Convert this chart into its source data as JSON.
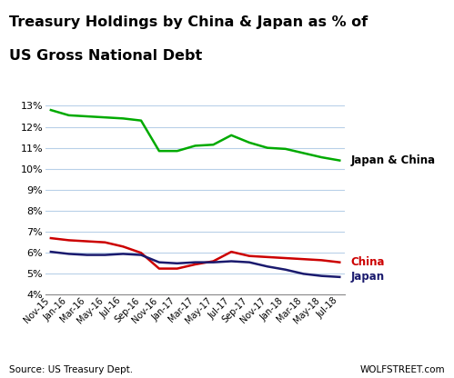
{
  "title_line1": "Treasury Holdings by China & Japan as % of",
  "title_line2": "US Gross National Debt",
  "x_labels": [
    "Nov-15",
    "Jan-16",
    "Mar-16",
    "May-16",
    "Jul-16",
    "Sep-16",
    "Nov-16",
    "Jan-17",
    "Mar-17",
    "May-17",
    "Jul-17",
    "Sep-17",
    "Nov-17",
    "Jan-18",
    "Mar-18",
    "May-18",
    "Jul-18"
  ],
  "japan_china": [
    12.8,
    12.55,
    12.5,
    12.45,
    12.4,
    12.3,
    10.85,
    10.85,
    11.1,
    11.15,
    11.6,
    11.25,
    11.0,
    10.95,
    10.75,
    10.55,
    10.4
  ],
  "china": [
    6.7,
    6.6,
    6.55,
    6.5,
    6.3,
    6.0,
    5.25,
    5.25,
    5.45,
    5.6,
    6.05,
    5.85,
    5.8,
    5.75,
    5.7,
    5.65,
    5.55
  ],
  "japan": [
    6.05,
    5.95,
    5.9,
    5.9,
    5.95,
    5.9,
    5.55,
    5.5,
    5.55,
    5.55,
    5.6,
    5.55,
    5.35,
    5.2,
    5.0,
    4.9,
    4.85
  ],
  "color_japan_china": "#00aa00",
  "color_china": "#cc0000",
  "color_japan": "#1a1a6e",
  "ylim_min": 4,
  "ylim_max": 13,
  "yticks": [
    4,
    5,
    6,
    7,
    8,
    9,
    10,
    11,
    12,
    13
  ],
  "source_left": "Source: US Treasury Dept.",
  "source_right": "WOLFSTREET.com",
  "background_color": "#ffffff",
  "grid_color": "#b8d0e8"
}
